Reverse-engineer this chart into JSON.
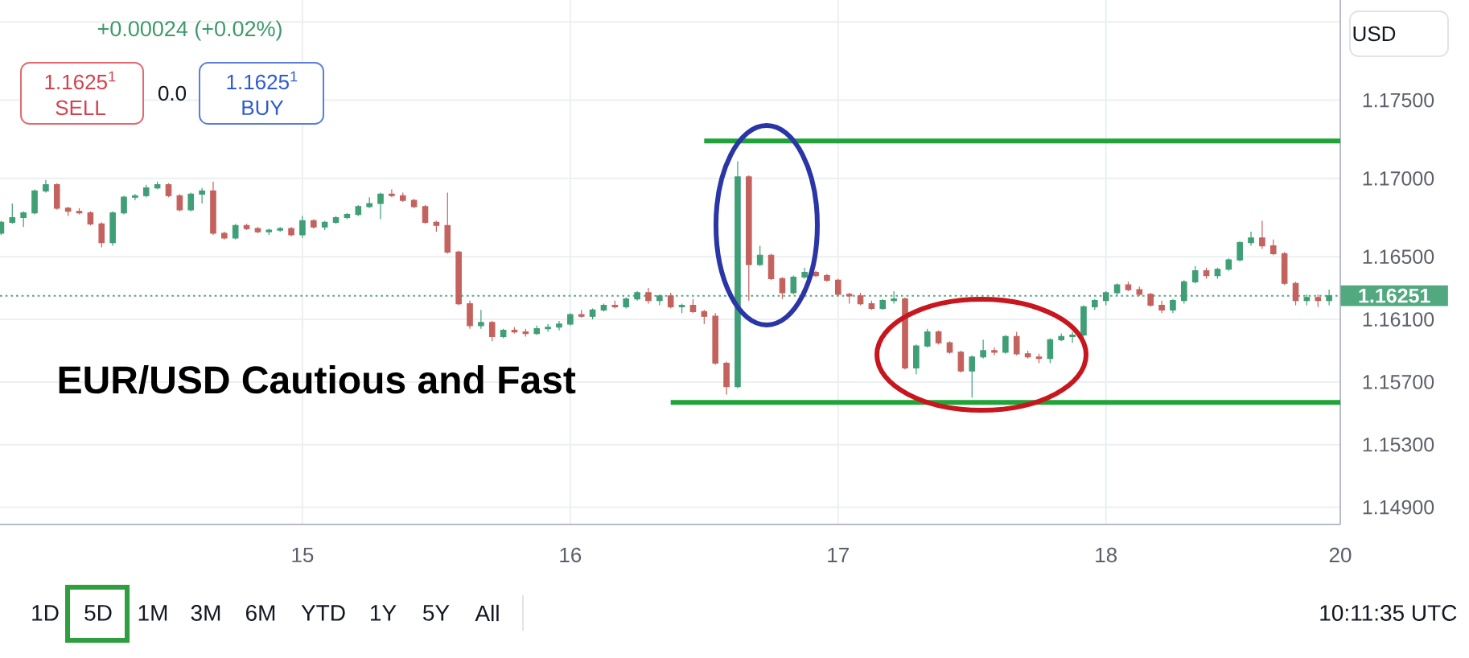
{
  "chart_data": {
    "type": "candlestick",
    "title": "EUR/USD Cautious and Fast",
    "annotations": [
      "+0.00024 (+0.02%)",
      "1.1625$^{1}$",
      "SELL",
      "0.0",
      "1.1625$^{1}$",
      "BUY",
      "USD",
      "1D",
      "5D",
      "1M",
      "3M",
      "6M",
      "YTD",
      "1Y",
      "5Y",
      "All",
      "10:11:35 UTC"
    ],
    "ylim": [
      1.1479,
      1.1814
    ],
    "yticks": [
      {
        "value": 1.18,
        "label": null
      },
      {
        "value": 1.175,
        "label": "1.17500"
      },
      {
        "value": 1.17,
        "label": "1.17000"
      },
      {
        "value": 1.165,
        "label": "1.16500"
      },
      {
        "value": 1.161,
        "label": "1.16100"
      },
      {
        "value": 1.157,
        "label": "1.15700"
      },
      {
        "value": 1.153,
        "label": "1.15300"
      },
      {
        "value": 1.149,
        "label": "1.14900"
      }
    ],
    "grid": true,
    "categories": [
      null,
      null,
      null,
      null,
      null,
      null,
      null,
      null,
      null,
      null,
      null,
      null,
      null,
      null,
      null,
      null,
      null,
      null,
      null,
      null,
      null,
      null,
      null,
      null,
      null,
      null,
      null,
      "15",
      null,
      null,
      null,
      null,
      null,
      null,
      null,
      null,
      null,
      null,
      null,
      null,
      null,
      null,
      null,
      null,
      null,
      null,
      null,
      null,
      null,
      null,
      null,
      "16",
      null,
      null,
      null,
      null,
      null,
      null,
      null,
      null,
      null,
      null,
      null,
      null,
      null,
      null,
      null,
      null,
      null,
      null,
      null,
      null,
      null,
      null,
      null,
      "17",
      null,
      null,
      null,
      null,
      null,
      null,
      null,
      null,
      null,
      null,
      null,
      null,
      null,
      null,
      null,
      null,
      null,
      null,
      null,
      null,
      null,
      null,
      null,
      "18",
      null,
      null,
      null,
      null,
      null,
      null,
      null,
      null,
      null,
      null,
      null,
      null,
      null,
      null,
      null,
      null,
      null,
      null,
      null,
      null,
      "20"
    ],
    "ohlc": [
      [
        1.1665,
        1.1673,
        1.1664,
        1.1672
      ],
      [
        1.1672,
        1.1684,
        1.1671,
        1.1675
      ],
      [
        1.1675,
        1.1679,
        1.1669,
        1.1678
      ],
      [
        1.1678,
        1.1693,
        1.1677,
        1.1692
      ],
      [
        1.1692,
        1.1699,
        1.1691,
        1.1696
      ],
      [
        1.1696,
        1.1697,
        1.168,
        1.1681
      ],
      [
        1.1681,
        1.1682,
        1.1676,
        1.1679
      ],
      [
        1.1679,
        1.1681,
        1.1677,
        1.1678
      ],
      [
        1.1678,
        1.1679,
        1.167,
        1.1671
      ],
      [
        1.1671,
        1.1672,
        1.1656,
        1.1659
      ],
      [
        1.1659,
        1.1679,
        1.1657,
        1.1678
      ],
      [
        1.1678,
        1.1689,
        1.1677,
        1.1688
      ],
      [
        1.1688,
        1.169,
        1.1686,
        1.1689
      ],
      [
        1.1689,
        1.1696,
        1.1688,
        1.1694
      ],
      [
        1.1694,
        1.1698,
        1.1693,
        1.1696
      ],
      [
        1.1696,
        1.1697,
        1.1688,
        1.1689
      ],
      [
        1.1689,
        1.169,
        1.1679,
        1.168
      ],
      [
        1.168,
        1.1691,
        1.1679,
        1.169
      ],
      [
        1.169,
        1.1694,
        1.1684,
        1.1692
      ],
      [
        1.1692,
        1.1698,
        1.1664,
        1.1665
      ],
      [
        1.1665,
        1.1666,
        1.1661,
        1.1662
      ],
      [
        1.1662,
        1.1671,
        1.1661,
        1.167
      ],
      [
        1.167,
        1.1671,
        1.1667,
        1.1668
      ],
      [
        1.1668,
        1.1669,
        1.1665,
        1.1666
      ],
      [
        1.1666,
        1.1668,
        1.1664,
        1.1667
      ],
      [
        1.1667,
        1.1669,
        1.1666,
        1.1668
      ],
      [
        1.1668,
        1.1669,
        1.1663,
        1.1664
      ],
      [
        1.1664,
        1.1676,
        1.1662,
        1.1673
      ],
      [
        1.1673,
        1.1674,
        1.1668,
        1.1669
      ],
      [
        1.1669,
        1.1673,
        1.1667,
        1.1672
      ],
      [
        1.1672,
        1.1676,
        1.1671,
        1.1675
      ],
      [
        1.1675,
        1.1678,
        1.1674,
        1.1677
      ],
      [
        1.1677,
        1.1683,
        1.1676,
        1.1682
      ],
      [
        1.1682,
        1.1688,
        1.1681,
        1.1684
      ],
      [
        1.1684,
        1.1691,
        1.1674,
        1.169
      ],
      [
        1.169,
        1.1693,
        1.1688,
        1.1689
      ],
      [
        1.1689,
        1.1691,
        1.1685,
        1.1686
      ],
      [
        1.1686,
        1.1687,
        1.1681,
        1.1682
      ],
      [
        1.1682,
        1.1683,
        1.1671,
        1.1672
      ],
      [
        1.1672,
        1.1673,
        1.1666,
        1.167
      ],
      [
        1.167,
        1.1691,
        1.1652,
        1.1653
      ],
      [
        1.1653,
        1.1654,
        1.1619,
        1.162
      ],
      [
        1.162,
        1.1622,
        1.1604,
        1.1606
      ],
      [
        1.1606,
        1.1616,
        1.1604,
        1.1608
      ],
      [
        1.1608,
        1.1609,
        1.1596,
        1.1599
      ],
      [
        1.1599,
        1.1604,
        1.1598,
        1.1603
      ],
      [
        1.1603,
        1.1605,
        1.1601,
        1.1602
      ],
      [
        1.1602,
        1.1604,
        1.1599,
        1.1601
      ],
      [
        1.1601,
        1.1606,
        1.16,
        1.1604
      ],
      [
        1.1604,
        1.1607,
        1.1602,
        1.1605
      ],
      [
        1.1605,
        1.1609,
        1.1603,
        1.1607
      ],
      [
        1.1607,
        1.1614,
        1.1606,
        1.1613
      ],
      [
        1.1613,
        1.1616,
        1.1611,
        1.1612
      ],
      [
        1.1612,
        1.1617,
        1.161,
        1.1616
      ],
      [
        1.1616,
        1.162,
        1.1615,
        1.1619
      ],
      [
        1.1619,
        1.1622,
        1.1617,
        1.1618
      ],
      [
        1.1618,
        1.1624,
        1.1617,
        1.1623
      ],
      [
        1.1623,
        1.1628,
        1.1622,
        1.1627
      ],
      [
        1.1627,
        1.163,
        1.162,
        1.1622
      ],
      [
        1.1622,
        1.1626,
        1.1619,
        1.1625
      ],
      [
        1.1625,
        1.1627,
        1.1617,
        1.1618
      ],
      [
        1.1618,
        1.162,
        1.1614,
        1.1619
      ],
      [
        1.1619,
        1.1623,
        1.1614,
        1.1615
      ],
      [
        1.1615,
        1.1616,
        1.1607,
        1.1612
      ],
      [
        1.1612,
        1.1614,
        1.1581,
        1.1582
      ],
      [
        1.1582,
        1.1583,
        1.1562,
        1.1567
      ],
      [
        1.1567,
        1.1711,
        1.1566,
        1.1701
      ],
      [
        1.1701,
        1.1702,
        1.1622,
        1.1645
      ],
      [
        1.1645,
        1.1657,
        1.1644,
        1.1651
      ],
      [
        1.1651,
        1.1652,
        1.1635,
        1.1636
      ],
      [
        1.1636,
        1.1637,
        1.1623,
        1.1627
      ],
      [
        1.1627,
        1.1638,
        1.1626,
        1.1637
      ],
      [
        1.1637,
        1.1643,
        1.1636,
        1.164
      ],
      [
        1.164,
        1.1641,
        1.1637,
        1.1638
      ],
      [
        1.1638,
        1.1639,
        1.1634,
        1.1635
      ],
      [
        1.1635,
        1.1636,
        1.1625,
        1.1626
      ],
      [
        1.1626,
        1.1627,
        1.162,
        1.1625
      ],
      [
        1.1625,
        1.1627,
        1.1619,
        1.162
      ],
      [
        1.162,
        1.1622,
        1.1616,
        1.1617
      ],
      [
        1.1617,
        1.1623,
        1.1616,
        1.1622
      ],
      [
        1.1622,
        1.1628,
        1.162,
        1.1623
      ],
      [
        1.1623,
        1.1624,
        1.1578,
        1.1579
      ],
      [
        1.1579,
        1.1594,
        1.1575,
        1.1593
      ],
      [
        1.1593,
        1.1604,
        1.1592,
        1.1602
      ],
      [
        1.1602,
        1.1603,
        1.1594,
        1.1595
      ],
      [
        1.1595,
        1.1596,
        1.1588,
        1.1589
      ],
      [
        1.1589,
        1.159,
        1.1576,
        1.1577
      ],
      [
        1.1577,
        1.1587,
        1.156,
        1.1586
      ],
      [
        1.1586,
        1.1597,
        1.1585,
        1.159
      ],
      [
        1.159,
        1.1592,
        1.1587,
        1.1589
      ],
      [
        1.1589,
        1.16,
        1.1588,
        1.1599
      ],
      [
        1.1599,
        1.1602,
        1.1587,
        1.1588
      ],
      [
        1.1588,
        1.159,
        1.1585,
        1.1586
      ],
      [
        1.1586,
        1.1588,
        1.1582,
        1.1585
      ],
      [
        1.1585,
        1.1598,
        1.1582,
        1.1597
      ],
      [
        1.1597,
        1.1601,
        1.1596,
        1.1599
      ],
      [
        1.1599,
        1.1602,
        1.1595,
        1.16
      ],
      [
        1.16,
        1.1619,
        1.1599,
        1.1618
      ],
      [
        1.1618,
        1.1623,
        1.1616,
        1.1622
      ],
      [
        1.1622,
        1.1628,
        1.1619,
        1.1627
      ],
      [
        1.1627,
        1.1633,
        1.1625,
        1.1632
      ],
      [
        1.1632,
        1.1634,
        1.1628,
        1.1629
      ],
      [
        1.1629,
        1.1631,
        1.1625,
        1.1626
      ],
      [
        1.1626,
        1.1627,
        1.1618,
        1.1619
      ],
      [
        1.1619,
        1.1622,
        1.1614,
        1.1616
      ],
      [
        1.1616,
        1.1623,
        1.1614,
        1.1622
      ],
      [
        1.1622,
        1.1635,
        1.162,
        1.1634
      ],
      [
        1.1634,
        1.1644,
        1.1633,
        1.1641
      ],
      [
        1.1641,
        1.1643,
        1.1636,
        1.1638
      ],
      [
        1.1638,
        1.1643,
        1.1636,
        1.1642
      ],
      [
        1.1642,
        1.1649,
        1.1641,
        1.1648
      ],
      [
        1.1648,
        1.166,
        1.1647,
        1.1659
      ],
      [
        1.1659,
        1.1666,
        1.1657,
        1.1662
      ],
      [
        1.1662,
        1.1673,
        1.1655,
        1.1657
      ],
      [
        1.1657,
        1.1661,
        1.1651,
        1.1652
      ],
      [
        1.1652,
        1.1653,
        1.1632,
        1.1633
      ],
      [
        1.1633,
        1.1634,
        1.1619,
        1.1622
      ],
      [
        1.1622,
        1.1626,
        1.1619,
        1.1624
      ],
      [
        1.1624,
        1.1626,
        1.1618,
        1.1622
      ],
      [
        1.1622,
        1.1629,
        1.1619,
        1.16251
      ],
      null
    ],
    "colors": [
      "#3f9f76",
      "#3f9f76",
      "#3f9f76",
      "#3f9f76",
      "#3f9f76",
      "#c4625e",
      "#c4625e",
      "#c4625e",
      "#c4625e",
      "#c4625e",
      "#3f9f76",
      "#3f9f76",
      "#3f9f76",
      "#3f9f76",
      "#3f9f76",
      "#c4625e",
      "#c4625e",
      "#3f9f76",
      "#3f9f76",
      "#c4625e",
      "#c4625e",
      "#3f9f76",
      "#c4625e",
      "#c4625e",
      "#3f9f76",
      "#3f9f76",
      "#c4625e",
      "#3f9f76",
      "#c4625e",
      "#3f9f76",
      "#3f9f76",
      "#3f9f76",
      "#3f9f76",
      "#3f9f76",
      "#3f9f76",
      "#c4625e",
      "#c4625e",
      "#c4625e",
      "#c4625e",
      "#c4625e",
      "#c4625e",
      "#c4625e",
      "#c4625e",
      "#3f9f76",
      "#c4625e",
      "#3f9f76",
      "#c4625e",
      "#c4625e",
      "#3f9f76",
      "#3f9f76",
      "#3f9f76",
      "#3f9f76",
      "#c4625e",
      "#3f9f76",
      "#3f9f76",
      "#c4625e",
      "#3f9f76",
      "#3f9f76",
      "#c4625e",
      "#3f9f76",
      "#c4625e",
      "#3f9f76",
      "#c4625e",
      "#c4625e",
      "#c4625e",
      "#c4625e",
      "#3f9f76",
      "#c4625e",
      "#3f9f76",
      "#c4625e",
      "#c4625e",
      "#3f9f76",
      "#3f9f76",
      "#c4625e",
      "#c4625e",
      "#c4625e",
      "#c4625e",
      "#c4625e",
      "#c4625e",
      "#3f9f76",
      "#3f9f76",
      "#c4625e",
      "#3f9f76",
      "#3f9f76",
      "#c4625e",
      "#c4625e",
      "#c4625e",
      "#3f9f76",
      "#3f9f76",
      "#c4625e",
      "#3f9f76",
      "#c4625e",
      "#c4625e",
      "#c4625e",
      "#3f9f76",
      "#3f9f76",
      "#3f9f76",
      "#3f9f76",
      "#3f9f76",
      "#3f9f76",
      "#3f9f76",
      "#c4625e",
      "#c4625e",
      "#c4625e",
      "#c4625e",
      "#3f9f76",
      "#3f9f76",
      "#3f9f76",
      "#c4625e",
      "#3f9f76",
      "#3f9f76",
      "#3f9f76",
      "#3f9f76",
      "#c4625e",
      "#c4625e",
      "#c4625e",
      "#c4625e",
      "#3f9f76",
      "#c4625e",
      "#3f9f76",
      null
    ],
    "series": [
      {
        "type": "line",
        "color": "#22a339",
        "values": [
          null,
          null,
          null,
          null,
          null,
          null,
          null,
          null,
          null,
          null,
          null,
          null,
          null,
          null,
          null,
          null,
          null,
          null,
          null,
          null,
          null,
          null,
          null,
          null,
          null,
          null,
          null,
          null,
          null,
          null,
          null,
          null,
          null,
          null,
          null,
          null,
          null,
          null,
          null,
          null,
          null,
          null,
          null,
          null,
          null,
          null,
          null,
          null,
          null,
          null,
          null,
          null,
          null,
          null,
          null,
          null,
          null,
          null,
          null,
          null,
          null,
          null,
          null,
          1.1724,
          1.1724,
          1.1724,
          1.1724,
          1.1724,
          1.1724,
          1.1724,
          1.1724,
          1.1724,
          1.1724,
          1.1724,
          1.1724,
          1.1724,
          1.1724,
          1.1724,
          1.1724,
          1.1724,
          1.1724,
          1.1724,
          1.1724,
          1.1724,
          1.1724,
          1.1724,
          1.1724,
          1.1724,
          1.1724,
          1.1724,
          1.1724,
          1.1724,
          1.1724,
          1.1724,
          1.1724,
          1.1724,
          1.1724,
          1.1724,
          1.1724,
          1.1724,
          1.1724,
          1.1724,
          1.1724,
          1.1724,
          1.1724,
          1.1724,
          1.1724,
          1.1724,
          1.1724,
          1.1724,
          1.1724,
          1.1724,
          1.1724,
          1.1724,
          1.1724,
          1.1724,
          1.1724,
          1.1724,
          1.1724,
          1.1724,
          1.1724
        ]
      },
      {
        "type": "line",
        "color": "#22a339",
        "values": [
          null,
          null,
          null,
          null,
          null,
          null,
          null,
          null,
          null,
          null,
          null,
          null,
          null,
          null,
          null,
          null,
          null,
          null,
          null,
          null,
          null,
          null,
          null,
          null,
          null,
          null,
          null,
          null,
          null,
          null,
          null,
          null,
          null,
          null,
          null,
          null,
          null,
          null,
          null,
          null,
          null,
          null,
          null,
          null,
          null,
          null,
          null,
          null,
          null,
          null,
          null,
          null,
          null,
          null,
          null,
          null,
          null,
          null,
          null,
          null,
          1.1557,
          1.1557,
          1.1557,
          1.1557,
          1.1557,
          1.1557,
          1.1557,
          1.1557,
          1.1557,
          1.1557,
          1.1557,
          1.1557,
          1.1557,
          1.1557,
          1.1557,
          1.1557,
          1.1557,
          1.1557,
          1.1557,
          1.1557,
          1.1557,
          1.1557,
          1.1557,
          1.1557,
          1.1557,
          1.1557,
          1.1557,
          1.1557,
          1.1557,
          1.1557,
          1.1557,
          1.1557,
          1.1557,
          1.1557,
          1.1557,
          1.1557,
          1.1557,
          1.1557,
          1.1557,
          1.1557,
          1.1557,
          1.1557,
          1.1557,
          1.1557,
          1.1557,
          1.1557,
          1.1557,
          1.1557,
          1.1557,
          1.1557,
          1.1557,
          1.1557,
          1.1557,
          1.1557,
          1.1557,
          1.1557,
          1.1557,
          1.1557,
          1.1557,
          1.1557,
          1.1557
        ]
      }
    ],
    "ref_lines": [
      {
        "axis": "y",
        "value": 1.16251,
        "label": "1.16251",
        "color": "#53a97f",
        "line_style": "dotted"
      }
    ]
  }
}
